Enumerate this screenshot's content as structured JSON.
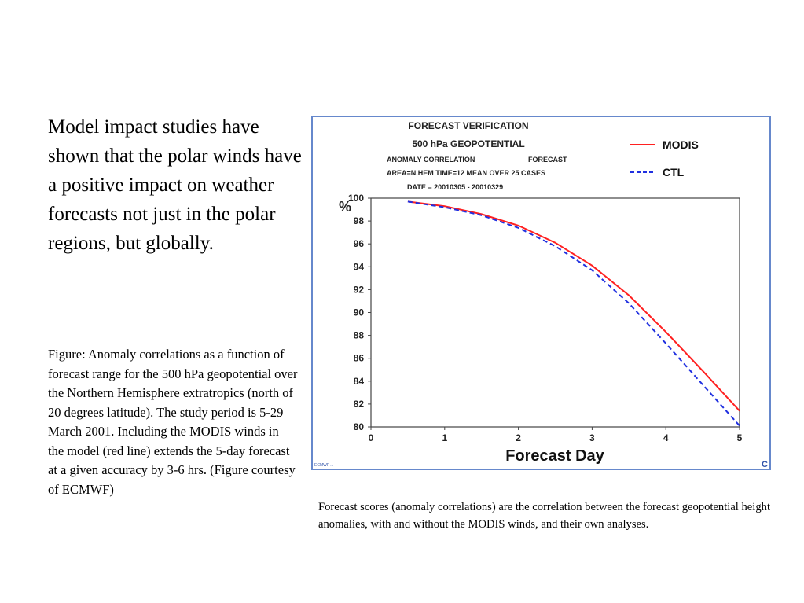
{
  "slide": {
    "main_text": "Model impact studies have shown that the polar winds have a positive impact on weather forecasts not just in the polar regions, but globally.",
    "figure_caption": "Figure: Anomaly correlations as a function of forecast range for the 500 hPa geopotential over the Northern Hemisphere extratropics (north of 20 degrees latitude).  The study period is 5-29 March 2001.  Including the MODIS winds in the model (red line) extends the 5-day forecast at a given accuracy by 3-6 hrs. (Figure courtesy of ECMWF)",
    "bottom_note": "Forecast scores (anomaly correlations) are the correlation between the forecast geopotential height anomalies, with and without the MODIS winds, and their own analyses."
  },
  "chart_data": {
    "type": "line",
    "title": "FORECAST VERIFICATION",
    "subtitle": "500 hPa  GEOPOTENTIAL",
    "header_lines": {
      "left1": "ANOMALY CORRELATION",
      "right1": "FORECAST",
      "left2": "AREA=N.HEM    TIME=12    MEAN OVER  25 CASES",
      "date": "DATE = 20010305 - 20010329"
    },
    "xlabel": "Forecast Day",
    "ylabel": "%",
    "xlim": [
      0,
      5
    ],
    "ylim": [
      80,
      100
    ],
    "x_ticks": [
      0,
      1,
      2,
      3,
      4,
      5
    ],
    "y_ticks": [
      80,
      82,
      84,
      86,
      88,
      90,
      92,
      94,
      96,
      98,
      100
    ],
    "legend_position": "top-right",
    "grid": false,
    "footer_text": "ECMWF ...",
    "corner_mark": "C",
    "series": [
      {
        "name": "MODIS",
        "color": "#ff2020",
        "dash": "solid",
        "x": [
          0.5,
          1.0,
          1.5,
          2.0,
          2.5,
          3.0,
          3.5,
          4.0,
          4.5,
          5.0
        ],
        "y": [
          99.7,
          99.3,
          98.6,
          97.6,
          96.1,
          94.1,
          91.5,
          88.3,
          84.9,
          81.4
        ]
      },
      {
        "name": "CTL",
        "color": "#2030e0",
        "dash": "dashed",
        "x": [
          0.5,
          1.0,
          1.5,
          2.0,
          2.5,
          3.0,
          3.5,
          4.0,
          4.5,
          5.0
        ],
        "y": [
          99.7,
          99.2,
          98.5,
          97.4,
          95.8,
          93.7,
          90.8,
          87.3,
          83.7,
          80.1
        ]
      }
    ]
  }
}
